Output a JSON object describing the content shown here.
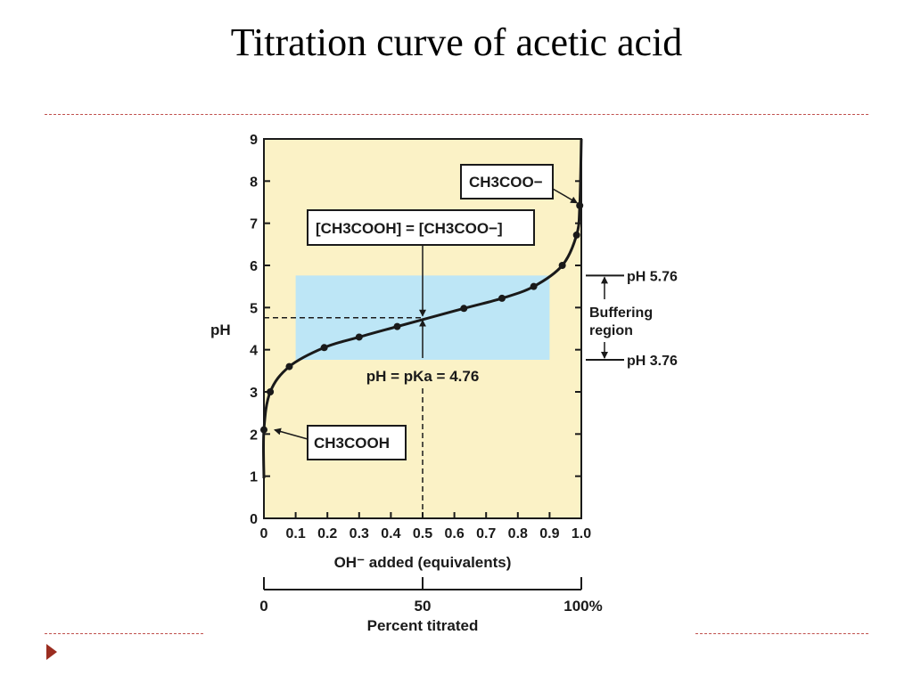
{
  "slide": {
    "title": "Titration curve of acetic acid"
  },
  "colors": {
    "plot_background": "#fbf2c6",
    "buffer_region": "#bde6f6",
    "curve": "#1a1a1a",
    "accent_rule": "#c0504d",
    "bullet": "#9b2d20"
  },
  "chart_data": {
    "type": "line",
    "xlabel": "OH⁻ added (equivalents)",
    "ylabel": "pH",
    "xlim": [
      0,
      1.0
    ],
    "ylim": [
      0,
      9
    ],
    "x_ticks": [
      "0",
      "0.1",
      "0.2",
      "0.3",
      "0.4",
      "0.5",
      "0.6",
      "0.7",
      "0.8",
      "0.9",
      "1.0"
    ],
    "y_ticks": [
      "0",
      "1",
      "2",
      "3",
      "4",
      "5",
      "6",
      "7",
      "8",
      "9"
    ],
    "grid": false,
    "points": [
      {
        "x": 0.0,
        "y": 2.1
      },
      {
        "x": 0.02,
        "y": 3.0
      },
      {
        "x": 0.08,
        "y": 3.6
      },
      {
        "x": 0.19,
        "y": 4.05
      },
      {
        "x": 0.3,
        "y": 4.3
      },
      {
        "x": 0.42,
        "y": 4.55
      },
      {
        "x": 0.63,
        "y": 4.98
      },
      {
        "x": 0.75,
        "y": 5.22
      },
      {
        "x": 0.85,
        "y": 5.5
      },
      {
        "x": 0.94,
        "y": 6.0
      },
      {
        "x": 0.985,
        "y": 6.72
      },
      {
        "x": 0.995,
        "y": 7.42
      }
    ],
    "buffer_region": {
      "x_range": [
        0.1,
        0.9
      ],
      "y_range": [
        3.76,
        5.76
      ]
    },
    "midpoint": {
      "x": 0.5,
      "y": 4.76
    },
    "annotations": {
      "species_top": "CH3COO−",
      "equal_concentrations": "[CH3COOH] = [CH3COO−]",
      "species_bottom": "CH3COOH",
      "pka_label": "pH = pKa = 4.76",
      "buffer_upper": "pH 5.76",
      "buffer_lower": "pH 3.76",
      "buffer_label_line1": "Buffering",
      "buffer_label_line2": "region"
    },
    "secondary_axis": {
      "label": "Percent titrated",
      "ticks": [
        "0",
        "50",
        "100%"
      ]
    }
  }
}
